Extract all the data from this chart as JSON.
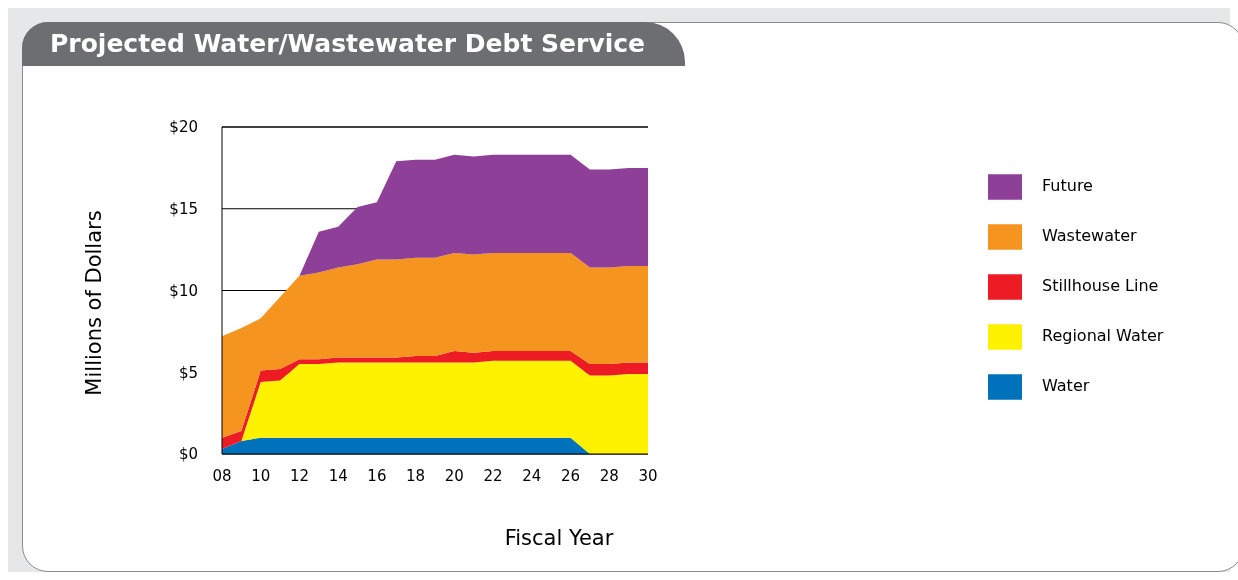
{
  "chart_data": {
    "type": "area",
    "title": "Projected Water/Wastewater Debt Service",
    "xlabel": "Fiscal Year",
    "ylabel": "Millions of Dollars",
    "stacked": true,
    "grid": "y",
    "legend": "right",
    "x": [
      2008,
      2009,
      2010,
      2011,
      2012,
      2013,
      2014,
      2015,
      2016,
      2017,
      2018,
      2019,
      2020,
      2021,
      2022,
      2023,
      2024,
      2025,
      2026,
      2027,
      2028,
      2029,
      2030
    ],
    "xlim": [
      2008,
      2030
    ],
    "xticks": [
      {
        "value": 2008,
        "label": "08"
      },
      {
        "value": 2010,
        "label": "10"
      },
      {
        "value": 2012,
        "label": "12"
      },
      {
        "value": 2014,
        "label": "14"
      },
      {
        "value": 2016,
        "label": "16"
      },
      {
        "value": 2018,
        "label": "18"
      },
      {
        "value": 2020,
        "label": "20"
      },
      {
        "value": 2022,
        "label": "22"
      },
      {
        "value": 2024,
        "label": "24"
      },
      {
        "value": 2026,
        "label": "26"
      },
      {
        "value": 2028,
        "label": "28"
      },
      {
        "value": 2030,
        "label": "30"
      }
    ],
    "ylim": [
      0,
      20
    ],
    "yticks": [
      {
        "value": 0,
        "label": "$0"
      },
      {
        "value": 5,
        "label": "$5"
      },
      {
        "value": 10,
        "label": "$10"
      },
      {
        "value": 15,
        "label": "$15"
      },
      {
        "value": 20,
        "label": "$20"
      }
    ],
    "series": [
      {
        "name": "Water",
        "color": "#0072bc",
        "values": [
          0.3,
          0.8,
          1,
          1,
          1,
          1,
          1,
          1,
          1,
          1,
          1,
          1,
          1,
          1,
          1,
          1,
          1,
          1,
          1,
          0,
          0,
          0,
          0
        ]
      },
      {
        "name": "Regional Water",
        "color": "#fff200",
        "values": [
          0,
          0,
          3.4,
          3.5,
          4.5,
          4.5,
          4.6,
          4.6,
          4.6,
          4.6,
          4.6,
          4.6,
          4.6,
          4.6,
          4.7,
          4.7,
          4.7,
          4.7,
          4.7,
          4.8,
          4.8,
          4.9,
          4.9
        ]
      },
      {
        "name": "Stillhouse Line",
        "color": "#ed1c24",
        "values": [
          0.7,
          0.6,
          0.7,
          0.7,
          0.3,
          0.3,
          0.3,
          0.3,
          0.3,
          0.3,
          0.4,
          0.4,
          0.7,
          0.6,
          0.6,
          0.6,
          0.6,
          0.6,
          0.6,
          0.7,
          0.7,
          0.7,
          0.7
        ]
      },
      {
        "name": "Wastewater",
        "color": "#f5941e",
        "values": [
          6.2,
          6.3,
          3.2,
          4.4,
          5.1,
          5.3,
          5.5,
          5.7,
          6,
          6,
          6,
          6,
          6,
          6,
          6,
          6,
          6,
          6,
          6,
          5.9,
          5.9,
          5.9,
          5.9
        ]
      },
      {
        "name": "Future",
        "color": "#8e3f97",
        "values": [
          0,
          0,
          0,
          0,
          0,
          2.5,
          2.5,
          3.5,
          3.5,
          6,
          6,
          6,
          6,
          6,
          6,
          6,
          6,
          6,
          6,
          6,
          6,
          6,
          6
        ]
      }
    ]
  }
}
